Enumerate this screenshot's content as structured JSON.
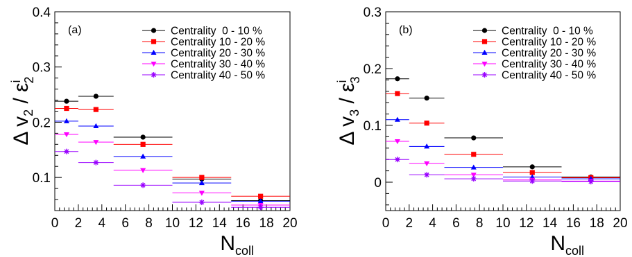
{
  "chart_data": [
    {
      "type": "scatter",
      "panel_label": "(a)",
      "xlabel": "N",
      "xlabel_sub": "coll",
      "ylabel_prefix": "Δ v",
      "ylabel_sub": "2",
      "ylabel_mid": " / ε",
      "ylabel_sup": "i",
      "ylabel_sub2": "2",
      "xlim": [
        0,
        20
      ],
      "ylim": [
        0.04,
        0.4
      ],
      "x_ticks": [
        "0",
        "2",
        "4",
        "6",
        "8",
        "10",
        "12",
        "14",
        "16",
        "18",
        "20"
      ],
      "y_ticks": [
        {
          "v": 0.1,
          "label": "0.1"
        },
        {
          "v": 0.2,
          "label": "0.2"
        },
        {
          "v": 0.3,
          "label": "0.3"
        },
        {
          "v": 0.4,
          "label": "0.4"
        }
      ],
      "legend_position": "top-right",
      "series": [
        {
          "name": "Centrality  0 - 10 %",
          "color": "#000000",
          "marker": "circle",
          "points": [
            {
              "x": 1,
              "xlo": 0,
              "xhi": 2,
              "y": 0.238
            },
            {
              "x": 3.5,
              "xlo": 2,
              "xhi": 5,
              "y": 0.247
            },
            {
              "x": 7.5,
              "xlo": 5,
              "xhi": 10,
              "y": 0.173
            },
            {
              "x": 12.5,
              "xlo": 10,
              "xhi": 15,
              "y": 0.097
            },
            {
              "x": 17.5,
              "xlo": 15,
              "xhi": 20,
              "y": 0.058
            }
          ]
        },
        {
          "name": "Centrality 10 - 20 %",
          "color": "#ff0000",
          "marker": "square",
          "points": [
            {
              "x": 1,
              "xlo": 0,
              "xhi": 2,
              "y": 0.225
            },
            {
              "x": 3.5,
              "xlo": 2,
              "xhi": 5,
              "y": 0.223
            },
            {
              "x": 7.5,
              "xlo": 5,
              "xhi": 10,
              "y": 0.16
            },
            {
              "x": 12.5,
              "xlo": 10,
              "xhi": 15,
              "y": 0.1
            },
            {
              "x": 17.5,
              "xlo": 15,
              "xhi": 20,
              "y": 0.066
            }
          ]
        },
        {
          "name": "Centrality 20 - 30 %",
          "color": "#0000ff",
          "marker": "triangle-up",
          "points": [
            {
              "x": 1,
              "xlo": 0,
              "xhi": 2,
              "y": 0.202
            },
            {
              "x": 3.5,
              "xlo": 2,
              "xhi": 5,
              "y": 0.193
            },
            {
              "x": 7.5,
              "xlo": 5,
              "xhi": 10,
              "y": 0.138
            },
            {
              "x": 12.5,
              "xlo": 10,
              "xhi": 15,
              "y": 0.09
            },
            {
              "x": 17.5,
              "xlo": 15,
              "xhi": 20,
              "y": 0.057
            }
          ]
        },
        {
          "name": "Centrality 30 - 40 %",
          "color": "#ff00ff",
          "marker": "triangle-down",
          "points": [
            {
              "x": 1,
              "xlo": 0,
              "xhi": 2,
              "y": 0.178
            },
            {
              "x": 3.5,
              "xlo": 2,
              "xhi": 5,
              "y": 0.164
            },
            {
              "x": 7.5,
              "xlo": 5,
              "xhi": 10,
              "y": 0.113
            },
            {
              "x": 12.5,
              "xlo": 10,
              "xhi": 15,
              "y": 0.072
            },
            {
              "x": 17.5,
              "xlo": 15,
              "xhi": 20,
              "y": 0.05
            }
          ]
        },
        {
          "name": "Centrality 40 - 50 %",
          "color": "#9900ff",
          "marker": "star",
          "points": [
            {
              "x": 1,
              "xlo": 0,
              "xhi": 2,
              "y": 0.147
            },
            {
              "x": 3.5,
              "xlo": 2,
              "xhi": 5,
              "y": 0.127
            },
            {
              "x": 7.5,
              "xlo": 5,
              "xhi": 10,
              "y": 0.086
            },
            {
              "x": 12.5,
              "xlo": 10,
              "xhi": 15,
              "y": 0.055
            },
            {
              "x": 17.5,
              "xlo": 15,
              "xhi": 20,
              "y": 0.046
            }
          ]
        }
      ]
    },
    {
      "type": "scatter",
      "panel_label": "(b)",
      "xlabel": "N",
      "xlabel_sub": "coll",
      "ylabel_prefix": "Δ v",
      "ylabel_sub": "3",
      "ylabel_mid": " / ε",
      "ylabel_sup": "i",
      "ylabel_sub2": "3",
      "xlim": [
        0,
        20
      ],
      "ylim": [
        -0.05,
        0.3
      ],
      "x_ticks": [
        "0",
        "2",
        "4",
        "6",
        "8",
        "10",
        "12",
        "14",
        "16",
        "18",
        "20"
      ],
      "y_ticks": [
        {
          "v": 0,
          "label": "0"
        },
        {
          "v": 0.1,
          "label": "0.1"
        },
        {
          "v": 0.2,
          "label": "0.2"
        },
        {
          "v": 0.3,
          "label": "0.3"
        }
      ],
      "legend_position": "top-right",
      "series": [
        {
          "name": "Centrality  0 - 10 %",
          "color": "#000000",
          "marker": "circle",
          "points": [
            {
              "x": 1,
              "xlo": 0,
              "xhi": 2,
              "y": 0.182
            },
            {
              "x": 3.5,
              "xlo": 2,
              "xhi": 5,
              "y": 0.148
            },
            {
              "x": 7.5,
              "xlo": 5,
              "xhi": 10,
              "y": 0.078
            },
            {
              "x": 12.5,
              "xlo": 10,
              "xhi": 15,
              "y": 0.027
            },
            {
              "x": 17.5,
              "xlo": 15,
              "xhi": 20,
              "y": 0.009
            }
          ]
        },
        {
          "name": "Centrality 10 - 20 %",
          "color": "#ff0000",
          "marker": "square",
          "points": [
            {
              "x": 1,
              "xlo": 0,
              "xhi": 2,
              "y": 0.156
            },
            {
              "x": 3.5,
              "xlo": 2,
              "xhi": 5,
              "y": 0.104
            },
            {
              "x": 7.5,
              "xlo": 5,
              "xhi": 10,
              "y": 0.049
            },
            {
              "x": 12.5,
              "xlo": 10,
              "xhi": 15,
              "y": 0.017
            },
            {
              "x": 17.5,
              "xlo": 15,
              "xhi": 20,
              "y": 0.008
            }
          ]
        },
        {
          "name": "Centrality 20 - 30 %",
          "color": "#0000ff",
          "marker": "triangle-up",
          "points": [
            {
              "x": 1,
              "xlo": 0,
              "xhi": 2,
              "y": 0.11
            },
            {
              "x": 3.5,
              "xlo": 2,
              "xhi": 5,
              "y": 0.063
            },
            {
              "x": 7.5,
              "xlo": 5,
              "xhi": 10,
              "y": 0.026
            },
            {
              "x": 12.5,
              "xlo": 10,
              "xhi": 15,
              "y": 0.009
            },
            {
              "x": 17.5,
              "xlo": 15,
              "xhi": 20,
              "y": 0.006
            }
          ]
        },
        {
          "name": "Centrality 30 - 40 %",
          "color": "#ff00ff",
          "marker": "triangle-down",
          "points": [
            {
              "x": 1,
              "xlo": 0,
              "xhi": 2,
              "y": 0.072
            },
            {
              "x": 3.5,
              "xlo": 2,
              "xhi": 5,
              "y": 0.033
            },
            {
              "x": 7.5,
              "xlo": 5,
              "xhi": 10,
              "y": 0.013
            },
            {
              "x": 12.5,
              "xlo": 10,
              "xhi": 15,
              "y": 0.004
            },
            {
              "x": 17.5,
              "xlo": 15,
              "xhi": 20,
              "y": 0.002
            }
          ]
        },
        {
          "name": "Centrality 40 - 50 %",
          "color": "#9900ff",
          "marker": "star",
          "points": [
            {
              "x": 1,
              "xlo": 0,
              "xhi": 2,
              "y": 0.04
            },
            {
              "x": 3.5,
              "xlo": 2,
              "xhi": 5,
              "y": 0.013
            },
            {
              "x": 7.5,
              "xlo": 5,
              "xhi": 10,
              "y": 0.006
            },
            {
              "x": 12.5,
              "xlo": 10,
              "xhi": 15,
              "y": 0.002
            },
            {
              "x": 17.5,
              "xlo": 15,
              "xhi": 20,
              "y": 0.001
            }
          ]
        }
      ]
    }
  ]
}
